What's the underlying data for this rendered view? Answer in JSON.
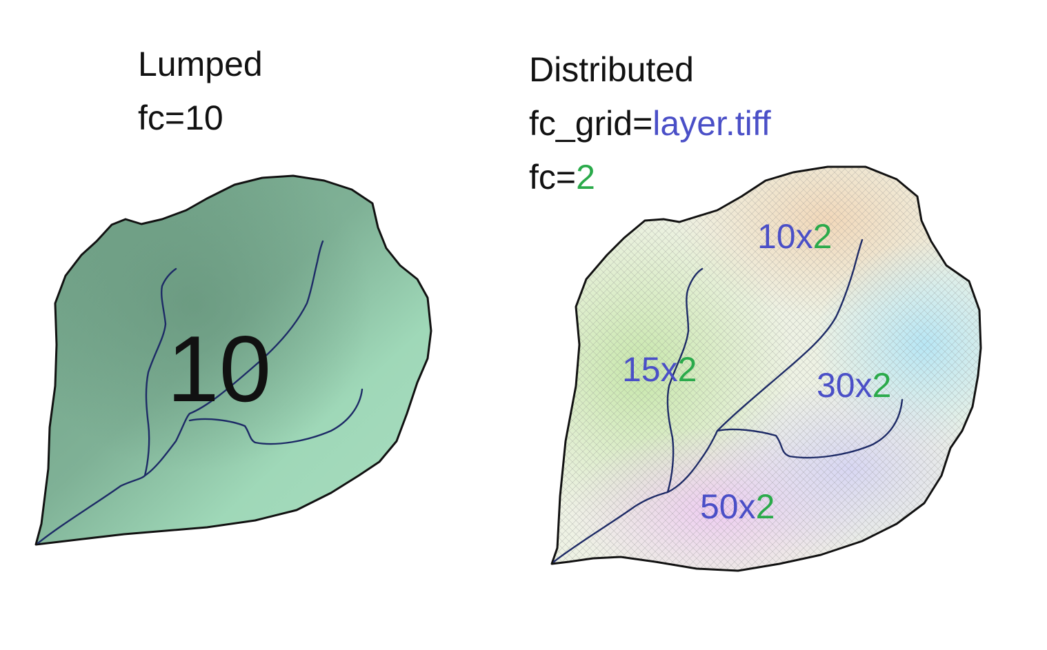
{
  "colors": {
    "text": "#111111",
    "grid_blue": "#4a4fc7",
    "factor_green": "#2aaa4a",
    "lumped_fill": "#9fd8b8",
    "lumped_fill_dark": "#6e9e84",
    "river": "#1d2a66"
  },
  "lumped": {
    "title": "Lumped",
    "param_line": "fc=10",
    "catchment_value": "10"
  },
  "distributed": {
    "title": "Distributed",
    "grid_key": "fc_grid=",
    "grid_file": "layer.tiff",
    "fc_key": "fc=",
    "fc_value": "2",
    "zones": [
      {
        "value": "10",
        "times": "x",
        "factor": "2"
      },
      {
        "value": "15",
        "times": "x",
        "factor": "2"
      },
      {
        "value": "30",
        "times": "x",
        "factor": "2"
      },
      {
        "value": "50",
        "times": "x",
        "factor": "2"
      }
    ]
  }
}
